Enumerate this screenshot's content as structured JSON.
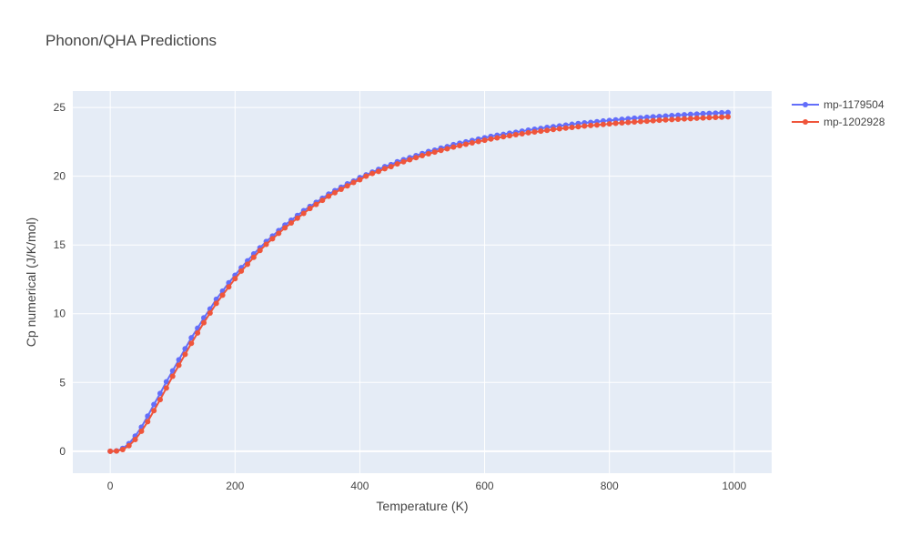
{
  "chart_data": {
    "type": "line",
    "title": "Phonon/QHA Predictions",
    "xlabel": "Temperature (K)",
    "ylabel": "Cp numerical (J/K/mol)",
    "xlim": [
      -60,
      1060
    ],
    "ylim": [
      -1.6,
      26.2
    ],
    "xticks": [
      0,
      200,
      400,
      600,
      800,
      1000
    ],
    "yticks": [
      0,
      5,
      10,
      15,
      20,
      25
    ],
    "grid": true,
    "legend_position": "top-right",
    "x": [
      0,
      10,
      20,
      30,
      40,
      50,
      60,
      70,
      80,
      90,
      100,
      110,
      120,
      130,
      140,
      150,
      160,
      170,
      180,
      190,
      200,
      210,
      220,
      230,
      240,
      250,
      260,
      270,
      280,
      290,
      300,
      310,
      320,
      330,
      340,
      350,
      360,
      370,
      380,
      390,
      400,
      410,
      420,
      430,
      440,
      450,
      460,
      470,
      480,
      490,
      500,
      510,
      520,
      530,
      540,
      550,
      560,
      570,
      580,
      590,
      600,
      610,
      620,
      630,
      640,
      650,
      660,
      670,
      680,
      690,
      700,
      710,
      720,
      730,
      740,
      750,
      760,
      770,
      780,
      790,
      800,
      810,
      820,
      830,
      840,
      850,
      860,
      870,
      880,
      890,
      900,
      910,
      920,
      930,
      940,
      950,
      960,
      970,
      980,
      990
    ],
    "series": [
      {
        "name": "mp-1179504",
        "color": "#636efa",
        "values": [
          0,
          0.02,
          0.2,
          0.55,
          1.1,
          1.75,
          2.55,
          3.4,
          4.2,
          5.05,
          5.85,
          6.65,
          7.45,
          8.25,
          8.95,
          9.7,
          10.35,
          11.05,
          11.65,
          12.25,
          12.8,
          13.35,
          13.85,
          14.35,
          14.8,
          15.25,
          15.65,
          16.05,
          16.45,
          16.8,
          17.15,
          17.5,
          17.8,
          18.1,
          18.4,
          18.7,
          18.95,
          19.2,
          19.45,
          19.65,
          19.9,
          20.1,
          20.3,
          20.5,
          20.7,
          20.85,
          21.05,
          21.2,
          21.35,
          21.5,
          21.65,
          21.8,
          21.9,
          22.05,
          22.15,
          22.3,
          22.4,
          22.5,
          22.6,
          22.7,
          22.8,
          22.9,
          22.98,
          23.05,
          23.13,
          23.2,
          23.28,
          23.35,
          23.42,
          23.48,
          23.55,
          23.6,
          23.66,
          23.72,
          23.78,
          23.83,
          23.88,
          23.92,
          23.97,
          24.02,
          24.06,
          24.1,
          24.14,
          24.18,
          24.22,
          24.25,
          24.29,
          24.32,
          24.35,
          24.38,
          24.41,
          24.44,
          24.47,
          24.5,
          24.52,
          24.55,
          24.57,
          24.59,
          24.62,
          24.64
        ]
      },
      {
        "name": "mp-1202928",
        "color": "#ef553b",
        "values": [
          0,
          0.01,
          0.12,
          0.4,
          0.85,
          1.45,
          2.15,
          2.95,
          3.75,
          4.6,
          5.45,
          6.25,
          7.05,
          7.85,
          8.6,
          9.35,
          10.05,
          10.75,
          11.35,
          11.95,
          12.55,
          13.1,
          13.6,
          14.1,
          14.6,
          15.05,
          15.45,
          15.85,
          16.25,
          16.6,
          16.95,
          17.3,
          17.65,
          17.95,
          18.25,
          18.55,
          18.8,
          19.05,
          19.3,
          19.55,
          19.75,
          20.0,
          20.2,
          20.35,
          20.55,
          20.7,
          20.9,
          21.05,
          21.2,
          21.35,
          21.5,
          21.63,
          21.76,
          21.88,
          22.0,
          22.12,
          22.23,
          22.33,
          22.43,
          22.53,
          22.62,
          22.71,
          22.79,
          22.87,
          22.95,
          23.02,
          23.09,
          23.16,
          23.22,
          23.28,
          23.34,
          23.4,
          23.45,
          23.5,
          23.55,
          23.6,
          23.65,
          23.69,
          23.73,
          23.77,
          23.81,
          23.85,
          23.88,
          23.92,
          23.95,
          23.98,
          24.01,
          24.04,
          24.07,
          24.1,
          24.12,
          24.15,
          24.17,
          24.19,
          24.22,
          24.24,
          24.26,
          24.28,
          24.3,
          24.32
        ]
      }
    ]
  }
}
